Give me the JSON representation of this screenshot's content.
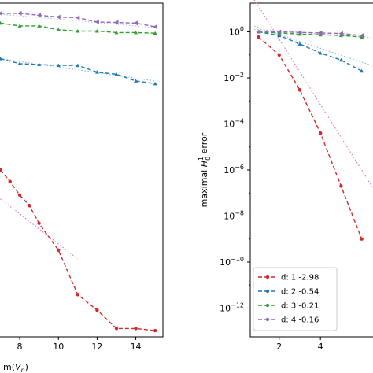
{
  "chart_data": [
    {
      "type": "line",
      "panel": "left",
      "xlabel": "dim(V_n)",
      "x_tick_labels": [
        "8",
        "10",
        "12",
        "14"
      ],
      "y_scale": "log",
      "series": [
        {
          "name": "d: 1",
          "color": "#d62728",
          "points": [
            [
              7,
              2e-07
            ],
            [
              7.5,
              6e-08
            ],
            [
              8,
              1.5e-08
            ],
            [
              8.5,
              5e-09
            ],
            [
              9,
              8e-10
            ],
            [
              10,
              5e-11
            ],
            [
              11,
              5e-13
            ],
            [
              12,
              1e-13
            ],
            [
              13,
              1.5e-14
            ],
            [
              14,
              1.5e-14
            ],
            [
              15,
              1.2e-14
            ]
          ]
        },
        {
          "name": "d: 2",
          "color": "#1f77b4",
          "points": [
            [
              7,
              0.02
            ],
            [
              8,
              0.012
            ],
            [
              9,
              0.011
            ],
            [
              10,
              0.01
            ],
            [
              11,
              0.01
            ],
            [
              12,
              0.005
            ],
            [
              13,
              0.004
            ],
            [
              14,
              0.002
            ],
            [
              15,
              0.0015
            ]
          ]
        },
        {
          "name": "d: 3",
          "color": "#2ca02c",
          "points": [
            [
              7,
              0.8
            ],
            [
              8,
              0.6
            ],
            [
              9,
              0.6
            ],
            [
              10,
              0.4
            ],
            [
              11,
              0.35
            ],
            [
              12,
              0.35
            ],
            [
              13,
              0.3
            ],
            [
              14,
              0.3
            ],
            [
              15,
              0.28
            ]
          ]
        },
        {
          "name": "d: 4",
          "color": "#9467bd",
          "points": [
            [
              7,
              2.2
            ],
            [
              8,
              2.2
            ],
            [
              9,
              1.8
            ],
            [
              10,
              1.5
            ],
            [
              11,
              1.4
            ],
            [
              12,
              0.9
            ],
            [
              13,
              0.85
            ],
            [
              14,
              0.8
            ],
            [
              15,
              0.55
            ]
          ]
        }
      ],
      "fits": [
        {
          "color": "#e377c2",
          "x": [
            7,
            11
          ],
          "y": [
            1e-08,
            2e-11
          ]
        },
        {
          "color": "#8fbce0",
          "x": [
            7,
            15
          ],
          "y": [
            0.02,
            0.002
          ]
        },
        {
          "color": "#a6cee3",
          "x": [
            7,
            15
          ],
          "y": [
            2,
            0.5
          ]
        }
      ]
    },
    {
      "type": "line",
      "panel": "right",
      "ylabel_prefix": "maximal ",
      "ylabel_math": "H",
      "ylabel_sup": "1",
      "ylabel_sub": "0",
      "ylabel_suffix": " error",
      "x_tick_labels": [
        "2",
        "4"
      ],
      "xlim": [
        0.6,
        6.7
      ],
      "ylim_log10": [
        -13.25,
        1.25
      ],
      "y_tick_mant": [
        "10",
        "10",
        "10",
        "10",
        "10",
        "10",
        "10",
        "10"
      ],
      "y_tick_exp": [
        "0",
        "−2",
        "−4",
        "−6",
        "−8",
        "−10",
        "−12",
        ""
      ],
      "y_tick_first": "10",
      "y_tick_first_exp": "0",
      "series": [
        {
          "name": "d: 1 -2.98",
          "color": "#d62728",
          "points": [
            [
              1,
              0.6
            ],
            [
              2,
              0.1
            ],
            [
              3,
              0.003
            ],
            [
              4,
              4e-05
            ],
            [
              5,
              2e-07
            ],
            [
              6,
              1e-09
            ]
          ]
        },
        {
          "name": "d: 2 -0.54",
          "color": "#1f77b4",
          "points": [
            [
              1,
              1.0
            ],
            [
              2,
              0.7
            ],
            [
              3,
              0.3
            ],
            [
              4,
              0.12
            ],
            [
              5,
              0.06
            ],
            [
              6,
              0.02
            ]
          ]
        },
        {
          "name": "d: 3 -0.21",
          "color": "#2ca02c",
          "points": [
            [
              1,
              1.0
            ],
            [
              2,
              0.9
            ],
            [
              3,
              0.8
            ],
            [
              4,
              0.75
            ],
            [
              5,
              0.7
            ],
            [
              6,
              0.6
            ]
          ]
        },
        {
          "name": "d: 4 -0.16",
          "color": "#9467bd",
          "points": [
            [
              1,
              1.0
            ],
            [
              2,
              1.0
            ],
            [
              3,
              0.95
            ],
            [
              4,
              0.9
            ],
            [
              5,
              0.85
            ],
            [
              6,
              0.7
            ]
          ]
        }
      ],
      "fits": [
        {
          "color": "#e377c2",
          "x": [
            0.8,
            6.7
          ],
          "y": [
            25,
            1e-07
          ]
        },
        {
          "color": "#8fbce0",
          "x": [
            0.8,
            6.7
          ],
          "y": [
            1.8,
            0.03
          ]
        },
        {
          "color": "#bbbbbb",
          "x": [
            0.8,
            6.7
          ],
          "y": [
            1.3,
            0.55
          ]
        }
      ],
      "legend_location": "lower-left"
    }
  ]
}
